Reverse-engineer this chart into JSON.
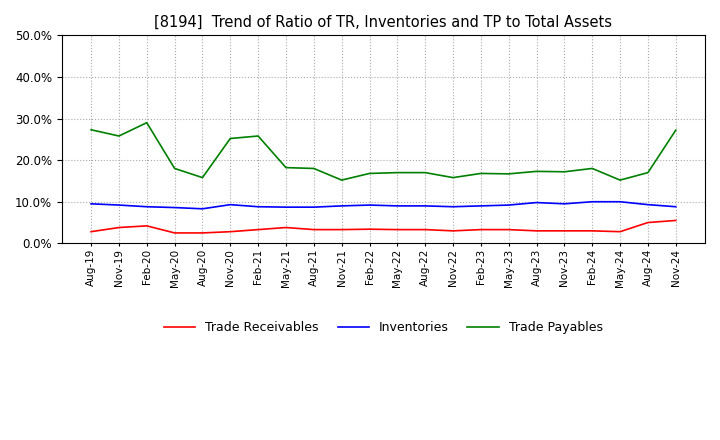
{
  "title": "[8194]  Trend of Ratio of TR, Inventories and TP to Total Assets",
  "title_fontsize": 10.5,
  "ylim": [
    0.0,
    0.5
  ],
  "yticks": [
    0.0,
    0.1,
    0.2,
    0.3,
    0.4,
    0.5
  ],
  "background_color": "#ffffff",
  "grid_color": "#aaaaaa",
  "legend_labels": [
    "Trade Receivables",
    "Inventories",
    "Trade Payables"
  ],
  "legend_colors": [
    "#ff0000",
    "#0000ff",
    "#008000"
  ],
  "x_labels": [
    "Aug-19",
    "Nov-19",
    "Feb-20",
    "May-20",
    "Aug-20",
    "Nov-20",
    "Feb-21",
    "May-21",
    "Aug-21",
    "Nov-21",
    "Feb-22",
    "May-22",
    "Aug-22",
    "Nov-22",
    "Feb-23",
    "May-23",
    "Aug-23",
    "Nov-23",
    "Feb-24",
    "May-24",
    "Aug-24",
    "Nov-24"
  ],
  "trade_receivables": [
    0.028,
    0.038,
    0.042,
    0.025,
    0.025,
    0.028,
    0.033,
    0.038,
    0.033,
    0.033,
    0.034,
    0.033,
    0.033,
    0.03,
    0.033,
    0.033,
    0.03,
    0.03,
    0.03,
    0.028,
    0.05,
    0.055
  ],
  "inventories": [
    0.095,
    0.092,
    0.088,
    0.086,
    0.083,
    0.093,
    0.088,
    0.087,
    0.087,
    0.09,
    0.092,
    0.09,
    0.09,
    0.088,
    0.09,
    0.092,
    0.098,
    0.095,
    0.1,
    0.1,
    0.093,
    0.088
  ],
  "trade_payables": [
    0.273,
    0.258,
    0.29,
    0.18,
    0.158,
    0.252,
    0.258,
    0.182,
    0.18,
    0.152,
    0.168,
    0.17,
    0.17,
    0.158,
    0.168,
    0.167,
    0.173,
    0.172,
    0.18,
    0.152,
    0.17,
    0.272
  ]
}
